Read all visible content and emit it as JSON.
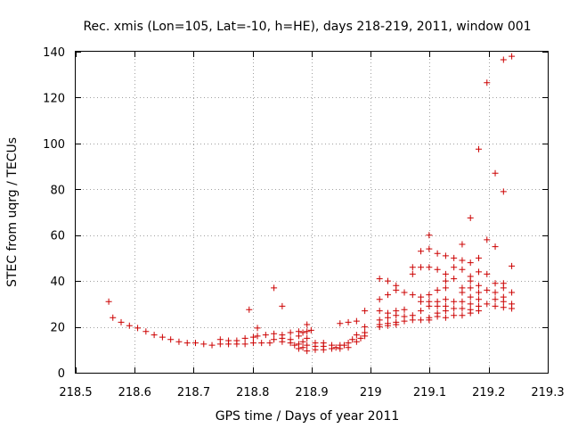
{
  "chart_data": {
    "type": "scatter",
    "title": "Rec. xmis (Lon=105, Lat=-10, h=HE), days 218-219, 2011, window 001",
    "xlabel": "GPS time / Days of year 2011",
    "ylabel": "STEC from uqrg / TECUs",
    "xlim": [
      218.5,
      219.3
    ],
    "ylim": [
      0,
      140
    ],
    "grid": true,
    "legend": "none",
    "marker": "+",
    "color": "#cc0000",
    "x_ticks": [
      "218.5",
      "218.6",
      "218.7",
      "218.8",
      "218.9",
      "219",
      "219.1",
      "219.2",
      "219.3"
    ],
    "y_ticks": [
      "0",
      "20",
      "40",
      "60",
      "80",
      "100",
      "120",
      "140"
    ],
    "x_tick_values": [
      218.5,
      218.6,
      218.7,
      218.8,
      218.9,
      219.0,
      219.1,
      219.2,
      219.3
    ],
    "y_tick_values": [
      0,
      20,
      40,
      60,
      80,
      100,
      120,
      140
    ],
    "points": [
      [
        218.556,
        31.0
      ],
      [
        218.563,
        24.0
      ],
      [
        218.577,
        22.0
      ],
      [
        218.591,
        20.5
      ],
      [
        218.605,
        19.5
      ],
      [
        218.619,
        18.0
      ],
      [
        218.633,
        16.5
      ],
      [
        218.647,
        15.5
      ],
      [
        218.661,
        14.5
      ],
      [
        218.675,
        13.5
      ],
      [
        218.689,
        13.0
      ],
      [
        218.703,
        13.0
      ],
      [
        218.717,
        12.5
      ],
      [
        218.731,
        12.0
      ],
      [
        218.745,
        12.5
      ],
      [
        218.759,
        12.5
      ],
      [
        218.773,
        12.5
      ],
      [
        218.787,
        12.5
      ],
      [
        218.801,
        13.0
      ],
      [
        218.745,
        14.5
      ],
      [
        218.759,
        14.0
      ],
      [
        218.773,
        14.0
      ],
      [
        218.787,
        15.0
      ],
      [
        218.801,
        15.5
      ],
      [
        218.794,
        27.5
      ],
      [
        218.808,
        19.5
      ],
      [
        218.808,
        16.0
      ],
      [
        218.815,
        13.0
      ],
      [
        218.822,
        16.5
      ],
      [
        218.829,
        13.0
      ],
      [
        218.836,
        37.0
      ],
      [
        218.836,
        17.0
      ],
      [
        218.836,
        14.5
      ],
      [
        218.85,
        29.0
      ],
      [
        218.85,
        16.5
      ],
      [
        218.85,
        15.0
      ],
      [
        218.85,
        13.5
      ],
      [
        218.864,
        17.5
      ],
      [
        218.864,
        14.5
      ],
      [
        218.864,
        13.0
      ],
      [
        218.871,
        12.0
      ],
      [
        218.878,
        18.0
      ],
      [
        218.878,
        16.0
      ],
      [
        218.878,
        12.5
      ],
      [
        218.878,
        10.5
      ],
      [
        218.885,
        17.5
      ],
      [
        218.885,
        13.5
      ],
      [
        218.885,
        11.0
      ],
      [
        218.892,
        21.0
      ],
      [
        218.892,
        18.0
      ],
      [
        218.892,
        15.0
      ],
      [
        218.892,
        12.0
      ],
      [
        218.892,
        9.5
      ],
      [
        218.899,
        18.5
      ],
      [
        218.906,
        13.0
      ],
      [
        218.906,
        11.5
      ],
      [
        218.906,
        10.0
      ],
      [
        218.92,
        13.0
      ],
      [
        218.92,
        11.5
      ],
      [
        218.92,
        10.0
      ],
      [
        218.934,
        12.0
      ],
      [
        218.934,
        10.5
      ],
      [
        218.941,
        11.0
      ],
      [
        218.948,
        21.5
      ],
      [
        218.948,
        12.0
      ],
      [
        218.948,
        10.5
      ],
      [
        218.955,
        12.0
      ],
      [
        218.962,
        22.0
      ],
      [
        218.962,
        13.0
      ],
      [
        218.962,
        11.0
      ],
      [
        218.969,
        14.5
      ],
      [
        218.976,
        22.5
      ],
      [
        218.976,
        16.5
      ],
      [
        218.976,
        13.5
      ],
      [
        218.983,
        15.0
      ],
      [
        218.99,
        27.0
      ],
      [
        218.99,
        20.0
      ],
      [
        218.99,
        17.5
      ],
      [
        218.99,
        16.0
      ],
      [
        219.015,
        41.0
      ],
      [
        219.015,
        32.0
      ],
      [
        219.015,
        27.0
      ],
      [
        219.015,
        23.0
      ],
      [
        219.015,
        21.0
      ],
      [
        219.015,
        20.0
      ],
      [
        219.029,
        40.0
      ],
      [
        219.029,
        34.0
      ],
      [
        219.029,
        26.0
      ],
      [
        219.029,
        24.0
      ],
      [
        219.029,
        21.5
      ],
      [
        219.029,
        20.5
      ],
      [
        219.043,
        38.0
      ],
      [
        219.043,
        36.0
      ],
      [
        219.043,
        27.0
      ],
      [
        219.043,
        25.0
      ],
      [
        219.043,
        22.0
      ],
      [
        219.043,
        21.0
      ],
      [
        219.057,
        35.0
      ],
      [
        219.057,
        27.5
      ],
      [
        219.057,
        24.5
      ],
      [
        219.057,
        22.5
      ],
      [
        219.071,
        46.0
      ],
      [
        219.071,
        43.0
      ],
      [
        219.071,
        34.0
      ],
      [
        219.071,
        25.0
      ],
      [
        219.071,
        23.0
      ],
      [
        219.085,
        53.0
      ],
      [
        219.085,
        46.0
      ],
      [
        219.085,
        33.0
      ],
      [
        219.085,
        31.0
      ],
      [
        219.085,
        27.0
      ],
      [
        219.085,
        23.0
      ],
      [
        219.099,
        60.0
      ],
      [
        219.099,
        54.0
      ],
      [
        219.099,
        46.0
      ],
      [
        219.099,
        34.0
      ],
      [
        219.099,
        31.0
      ],
      [
        219.099,
        29.0
      ],
      [
        219.099,
        24.0
      ],
      [
        219.099,
        23.0
      ],
      [
        219.113,
        52.0
      ],
      [
        219.113,
        45.0
      ],
      [
        219.113,
        36.0
      ],
      [
        219.113,
        31.0
      ],
      [
        219.113,
        29.0
      ],
      [
        219.113,
        26.0
      ],
      [
        219.113,
        24.5
      ],
      [
        219.127,
        51.0
      ],
      [
        219.127,
        43.0
      ],
      [
        219.127,
        40.0
      ],
      [
        219.127,
        37.0
      ],
      [
        219.127,
        32.0
      ],
      [
        219.127,
        29.0
      ],
      [
        219.127,
        27.0
      ],
      [
        219.127,
        24.0
      ],
      [
        219.141,
        50.0
      ],
      [
        219.141,
        46.0
      ],
      [
        219.141,
        41.0
      ],
      [
        219.141,
        31.0
      ],
      [
        219.141,
        28.0
      ],
      [
        219.141,
        25.0
      ],
      [
        219.155,
        56.0
      ],
      [
        219.155,
        49.0
      ],
      [
        219.155,
        45.0
      ],
      [
        219.155,
        37.0
      ],
      [
        219.155,
        35.0
      ],
      [
        219.155,
        31.0
      ],
      [
        219.155,
        28.0
      ],
      [
        219.155,
        25.0
      ],
      [
        219.169,
        67.5
      ],
      [
        219.169,
        48.0
      ],
      [
        219.169,
        42.0
      ],
      [
        219.169,
        40.0
      ],
      [
        219.169,
        37.0
      ],
      [
        219.169,
        33.0
      ],
      [
        219.169,
        30.0
      ],
      [
        219.169,
        27.5
      ],
      [
        219.169,
        26.0
      ],
      [
        219.183,
        97.5
      ],
      [
        219.183,
        50.0
      ],
      [
        219.183,
        44.0
      ],
      [
        219.183,
        38.0
      ],
      [
        219.183,
        35.0
      ],
      [
        219.183,
        32.0
      ],
      [
        219.183,
        29.0
      ],
      [
        219.183,
        27.0
      ],
      [
        219.197,
        126.5
      ],
      [
        219.197,
        58.0
      ],
      [
        219.197,
        43.0
      ],
      [
        219.197,
        36.0
      ],
      [
        219.197,
        30.0
      ],
      [
        219.211,
        87.0
      ],
      [
        219.211,
        55.0
      ],
      [
        219.211,
        39.0
      ],
      [
        219.211,
        35.0
      ],
      [
        219.211,
        32.0
      ],
      [
        219.211,
        29.0
      ],
      [
        219.225,
        136.5
      ],
      [
        219.225,
        79.0
      ],
      [
        219.225,
        39.0
      ],
      [
        219.225,
        37.0
      ],
      [
        219.225,
        33.0
      ],
      [
        219.225,
        31.0
      ],
      [
        219.225,
        28.5
      ],
      [
        219.239,
        138.0
      ],
      [
        219.239,
        46.5
      ],
      [
        219.239,
        35.0
      ],
      [
        219.239,
        30.0
      ],
      [
        219.239,
        28.0
      ]
    ]
  }
}
